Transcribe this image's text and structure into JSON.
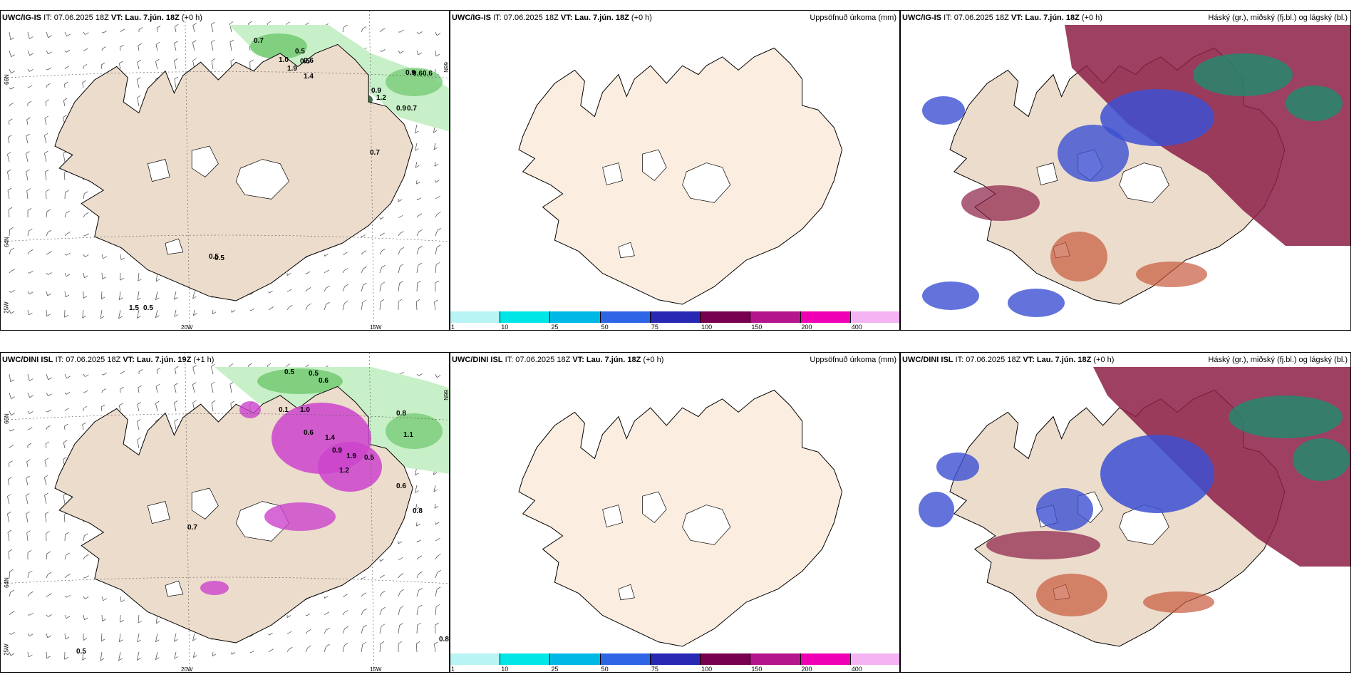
{
  "panels": {
    "top_left": {
      "model": "UWC/IG-IS",
      "it": "IT: 07.06.2025 18Z",
      "vt_label": "VT:",
      "vt": "Lau. 7.jún. 18Z",
      "lead": "(+0 h)",
      "right_title": ""
    },
    "top_mid": {
      "model": "UWC/IG-IS",
      "it": "IT: 07.06.2025 18Z",
      "vt_label": "VT:",
      "vt": "Lau. 7.jún. 18Z",
      "lead": "(+0 h)",
      "right_title": "Uppsöfnuð úrkoma (mm)"
    },
    "top_right": {
      "model": "UWC/IG-IS",
      "it": "IT: 07.06.2025 18Z",
      "vt_label": "VT:",
      "vt": "Lau. 7.jún. 18Z",
      "lead": "(+0 h)",
      "right_title": "Háský (gr.), miðský (fj.bl.) og lágský (bl.)"
    },
    "bot_left": {
      "model": "UWC/DINI ISL",
      "it": "IT: 07.06.2025 18Z",
      "vt_label": "VT:",
      "vt": "Lau. 7.jún. 19Z",
      "lead": "(+1 h)",
      "right_title": ""
    },
    "bot_mid": {
      "model": "UWC/DINI ISL",
      "it": "IT: 07.06.2025 18Z",
      "vt_label": "VT:",
      "vt": "Lau. 7.jún. 18Z",
      "lead": "(+0 h)",
      "right_title": "Uppsöfnuð úrkoma (mm)"
    },
    "bot_right": {
      "model": "UWC/DINI ISL",
      "it": "IT: 07.06.2025 18Z",
      "vt_label": "VT:",
      "vt": "Lau. 7.jún. 18Z",
      "lead": "(+0 h)",
      "right_title": "Háský (gr.), miðský (fj.bl.) og lágský (bl.)"
    }
  },
  "axes": {
    "lat_66": "66N",
    "lat_64": "64N",
    "lon_25": "25W",
    "lon_20": "20W",
    "lon_15": "15W"
  },
  "colorbar": {
    "ticks": [
      "1",
      "10",
      "25",
      "50",
      "75",
      "100",
      "150",
      "200",
      "400"
    ],
    "colors": [
      "#b8f4f4",
      "#00e6e6",
      "#00b8e6",
      "#2e64e6",
      "#2828b4",
      "#780050",
      "#b4148c",
      "#f000b4",
      "#f4b4f4"
    ]
  },
  "precip_labels_top": [
    "0.7",
    "0.5",
    "0.6",
    "1.0",
    "0.5",
    "1.9",
    "1.4",
    "0.9",
    "1.2",
    "0.9",
    "0.6",
    "0.6",
    "0.9",
    "0.7",
    "0.7",
    "0.5",
    "0.5",
    "1.5",
    "0.5"
  ],
  "precip_labels_bot": [
    "0.5",
    "0.5",
    "0.6",
    "0.8",
    "0.1",
    "1.0",
    "0.6",
    "1.4",
    "0.9",
    "1.9",
    "1.2",
    "0.5",
    "1.1",
    "0.6",
    "0.8",
    "0.7",
    "0.5",
    "0.8"
  ],
  "colors": {
    "land": "#ecdccc",
    "land_mid": "#fbeee0",
    "green_light": "#c8f0c8",
    "green_mid": "#78cc78",
    "green_dark": "#1e6e28",
    "magenta": "#cc44cc",
    "cloud_high": "#1e8c6e",
    "cloud_mid": "#8c1e46",
    "cloud_low": "#3c50d2"
  }
}
